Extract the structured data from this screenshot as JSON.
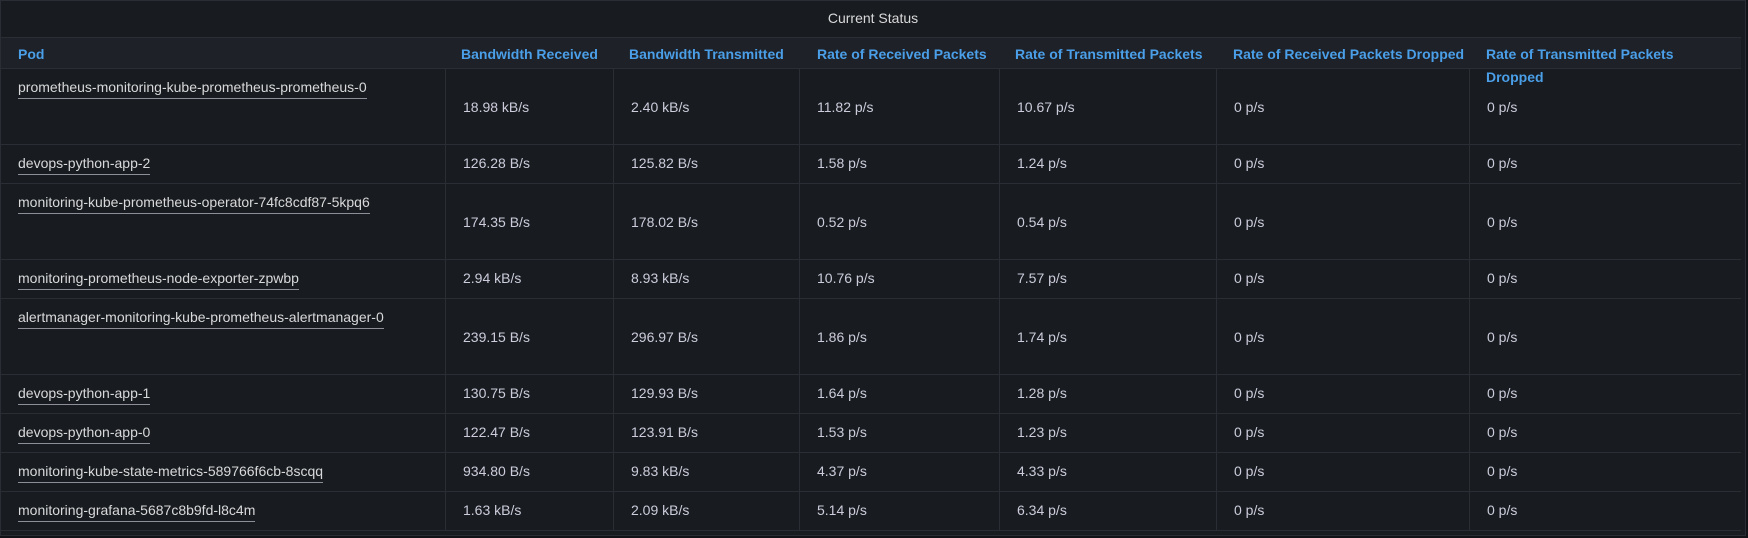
{
  "panel": {
    "title": "Current Status"
  },
  "columns": {
    "pod": "Pod",
    "bw_received": "Bandwidth Received",
    "bw_transmitted": "Bandwidth Transmitted",
    "rx_packets": "Rate of Received Packets",
    "tx_packets": "Rate of Transmitted Packets",
    "rx_dropped": "Rate of Received Packets Dropped",
    "tx_dropped": "Rate of Transmitted Packets Dropped"
  },
  "rows": [
    {
      "pod": "prometheus-monitoring-kube-prometheus-prometheus-0",
      "bw_received": "18.98 kB/s",
      "bw_transmitted": "2.40 kB/s",
      "rx_packets": "11.82 p/s",
      "tx_packets": "10.67 p/s",
      "rx_dropped": "0 p/s",
      "tx_dropped": "0 p/s"
    },
    {
      "pod": "devops-python-app-2",
      "bw_received": "126.28 B/s",
      "bw_transmitted": "125.82 B/s",
      "rx_packets": "1.58 p/s",
      "tx_packets": "1.24 p/s",
      "rx_dropped": "0 p/s",
      "tx_dropped": "0 p/s"
    },
    {
      "pod": "monitoring-kube-prometheus-operator-74fc8cdf87-5kpq6",
      "bw_received": "174.35 B/s",
      "bw_transmitted": "178.02 B/s",
      "rx_packets": "0.52 p/s",
      "tx_packets": "0.54 p/s",
      "rx_dropped": "0 p/s",
      "tx_dropped": "0 p/s"
    },
    {
      "pod": "monitoring-prometheus-node-exporter-zpwbp",
      "bw_received": "2.94 kB/s",
      "bw_transmitted": "8.93 kB/s",
      "rx_packets": "10.76 p/s",
      "tx_packets": "7.57 p/s",
      "rx_dropped": "0 p/s",
      "tx_dropped": "0 p/s"
    },
    {
      "pod": "alertmanager-monitoring-kube-prometheus-alertmanager-0",
      "bw_received": "239.15 B/s",
      "bw_transmitted": "296.97 B/s",
      "rx_packets": "1.86 p/s",
      "tx_packets": "1.74 p/s",
      "rx_dropped": "0 p/s",
      "tx_dropped": "0 p/s"
    },
    {
      "pod": "devops-python-app-1",
      "bw_received": "130.75 B/s",
      "bw_transmitted": "129.93 B/s",
      "rx_packets": "1.64 p/s",
      "tx_packets": "1.28 p/s",
      "rx_dropped": "0 p/s",
      "tx_dropped": "0 p/s"
    },
    {
      "pod": "devops-python-app-0",
      "bw_received": "122.47 B/s",
      "bw_transmitted": "123.91 B/s",
      "rx_packets": "1.53 p/s",
      "tx_packets": "1.23 p/s",
      "rx_dropped": "0 p/s",
      "tx_dropped": "0 p/s"
    },
    {
      "pod": "monitoring-kube-state-metrics-589766f6cb-8scqq",
      "bw_received": "934.80 B/s",
      "bw_transmitted": "9.83 kB/s",
      "rx_packets": "4.37 p/s",
      "tx_packets": "4.33 p/s",
      "rx_dropped": "0 p/s",
      "tx_dropped": "0 p/s"
    },
    {
      "pod": "monitoring-grafana-5687c8b9fd-l8c4m",
      "bw_received": "1.63 kB/s",
      "bw_transmitted": "2.09 kB/s",
      "rx_packets": "5.14 p/s",
      "tx_packets": "6.34 p/s",
      "rx_dropped": "0 p/s",
      "tx_dropped": "0 p/s"
    }
  ]
}
